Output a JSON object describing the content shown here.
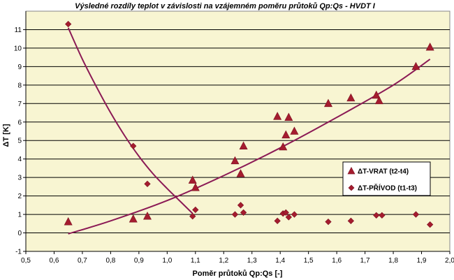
{
  "chart_data": {
    "type": "scatter",
    "title": "Výsledné rozdíly teplot v závislosti na vzájemném poměru průtoků Qp:Qs - HVDT I",
    "xlabel": "Poměr průtoků Qp:Qs  [-]",
    "ylabel": "ΔT [K]",
    "xlim": [
      0.5,
      2.0
    ],
    "ylim": [
      -1,
      12
    ],
    "x_ticks": [
      "0,5",
      "0,6",
      "0,7",
      "0,8",
      "0,9",
      "1,0",
      "1,1",
      "1,2",
      "1,3",
      "1,4",
      "1,5",
      "1,6",
      "1,7",
      "1,8",
      "1,9",
      "2,0"
    ],
    "y_ticks": [
      "-1",
      "0",
      "1",
      "2",
      "3",
      "4",
      "5",
      "6",
      "7",
      "8",
      "9",
      "10",
      "11"
    ],
    "grid": true,
    "legend_position": "right",
    "colors": {
      "plot_background": "#f8f5d2",
      "marker": "#a51c2f",
      "trendline": "#8b1a55",
      "grid": "#000000"
    },
    "series": [
      {
        "name": "ΔT-VRAT (t2-t4)",
        "marker": "triangle",
        "points": [
          {
            "x": 0.65,
            "y": 0.6
          },
          {
            "x": 0.88,
            "y": 0.75
          },
          {
            "x": 0.93,
            "y": 0.9
          },
          {
            "x": 1.09,
            "y": 2.85
          },
          {
            "x": 1.1,
            "y": 2.45
          },
          {
            "x": 1.24,
            "y": 3.9
          },
          {
            "x": 1.26,
            "y": 3.2
          },
          {
            "x": 1.27,
            "y": 4.7
          },
          {
            "x": 1.39,
            "y": 6.3
          },
          {
            "x": 1.41,
            "y": 4.65
          },
          {
            "x": 1.42,
            "y": 5.3
          },
          {
            "x": 1.43,
            "y": 6.25
          },
          {
            "x": 1.45,
            "y": 5.5
          },
          {
            "x": 1.57,
            "y": 7.0
          },
          {
            "x": 1.65,
            "y": 7.3
          },
          {
            "x": 1.74,
            "y": 7.45
          },
          {
            "x": 1.75,
            "y": 7.15
          },
          {
            "x": 1.88,
            "y": 9.0
          },
          {
            "x": 1.93,
            "y": 10.05
          }
        ],
        "trend": [
          {
            "x": 0.65,
            "y": -0.05
          },
          {
            "x": 0.8,
            "y": 0.65
          },
          {
            "x": 1.0,
            "y": 1.75
          },
          {
            "x": 1.2,
            "y": 3.1
          },
          {
            "x": 1.4,
            "y": 4.6
          },
          {
            "x": 1.6,
            "y": 6.25
          },
          {
            "x": 1.8,
            "y": 8.0
          },
          {
            "x": 1.93,
            "y": 9.4
          }
        ]
      },
      {
        "name": "ΔT-PŘÍVOD (t1-t3)",
        "marker": "diamond",
        "points": [
          {
            "x": 0.65,
            "y": 11.3
          },
          {
            "x": 0.88,
            "y": 4.7
          },
          {
            "x": 0.93,
            "y": 2.65
          },
          {
            "x": 1.09,
            "y": 0.9
          },
          {
            "x": 1.1,
            "y": 1.25
          },
          {
            "x": 1.24,
            "y": 1.0
          },
          {
            "x": 1.26,
            "y": 1.5
          },
          {
            "x": 1.27,
            "y": 1.1
          },
          {
            "x": 1.39,
            "y": 0.65
          },
          {
            "x": 1.41,
            "y": 1.05
          },
          {
            "x": 1.42,
            "y": 1.1
          },
          {
            "x": 1.43,
            "y": 0.85
          },
          {
            "x": 1.45,
            "y": 1.0
          },
          {
            "x": 1.57,
            "y": 0.6
          },
          {
            "x": 1.65,
            "y": 0.65
          },
          {
            "x": 1.74,
            "y": 0.95
          },
          {
            "x": 1.76,
            "y": 0.95
          },
          {
            "x": 1.88,
            "y": 1.0
          },
          {
            "x": 1.93,
            "y": 0.45
          }
        ],
        "trend": [
          {
            "x": 0.65,
            "y": 11.1
          },
          {
            "x": 0.7,
            "y": 9.4
          },
          {
            "x": 0.75,
            "y": 7.9
          },
          {
            "x": 0.8,
            "y": 6.5
          },
          {
            "x": 0.85,
            "y": 5.25
          },
          {
            "x": 0.9,
            "y": 4.15
          },
          {
            "x": 0.95,
            "y": 3.2
          },
          {
            "x": 1.0,
            "y": 2.4
          },
          {
            "x": 1.05,
            "y": 1.65
          },
          {
            "x": 1.09,
            "y": 1.05
          }
        ]
      }
    ]
  }
}
